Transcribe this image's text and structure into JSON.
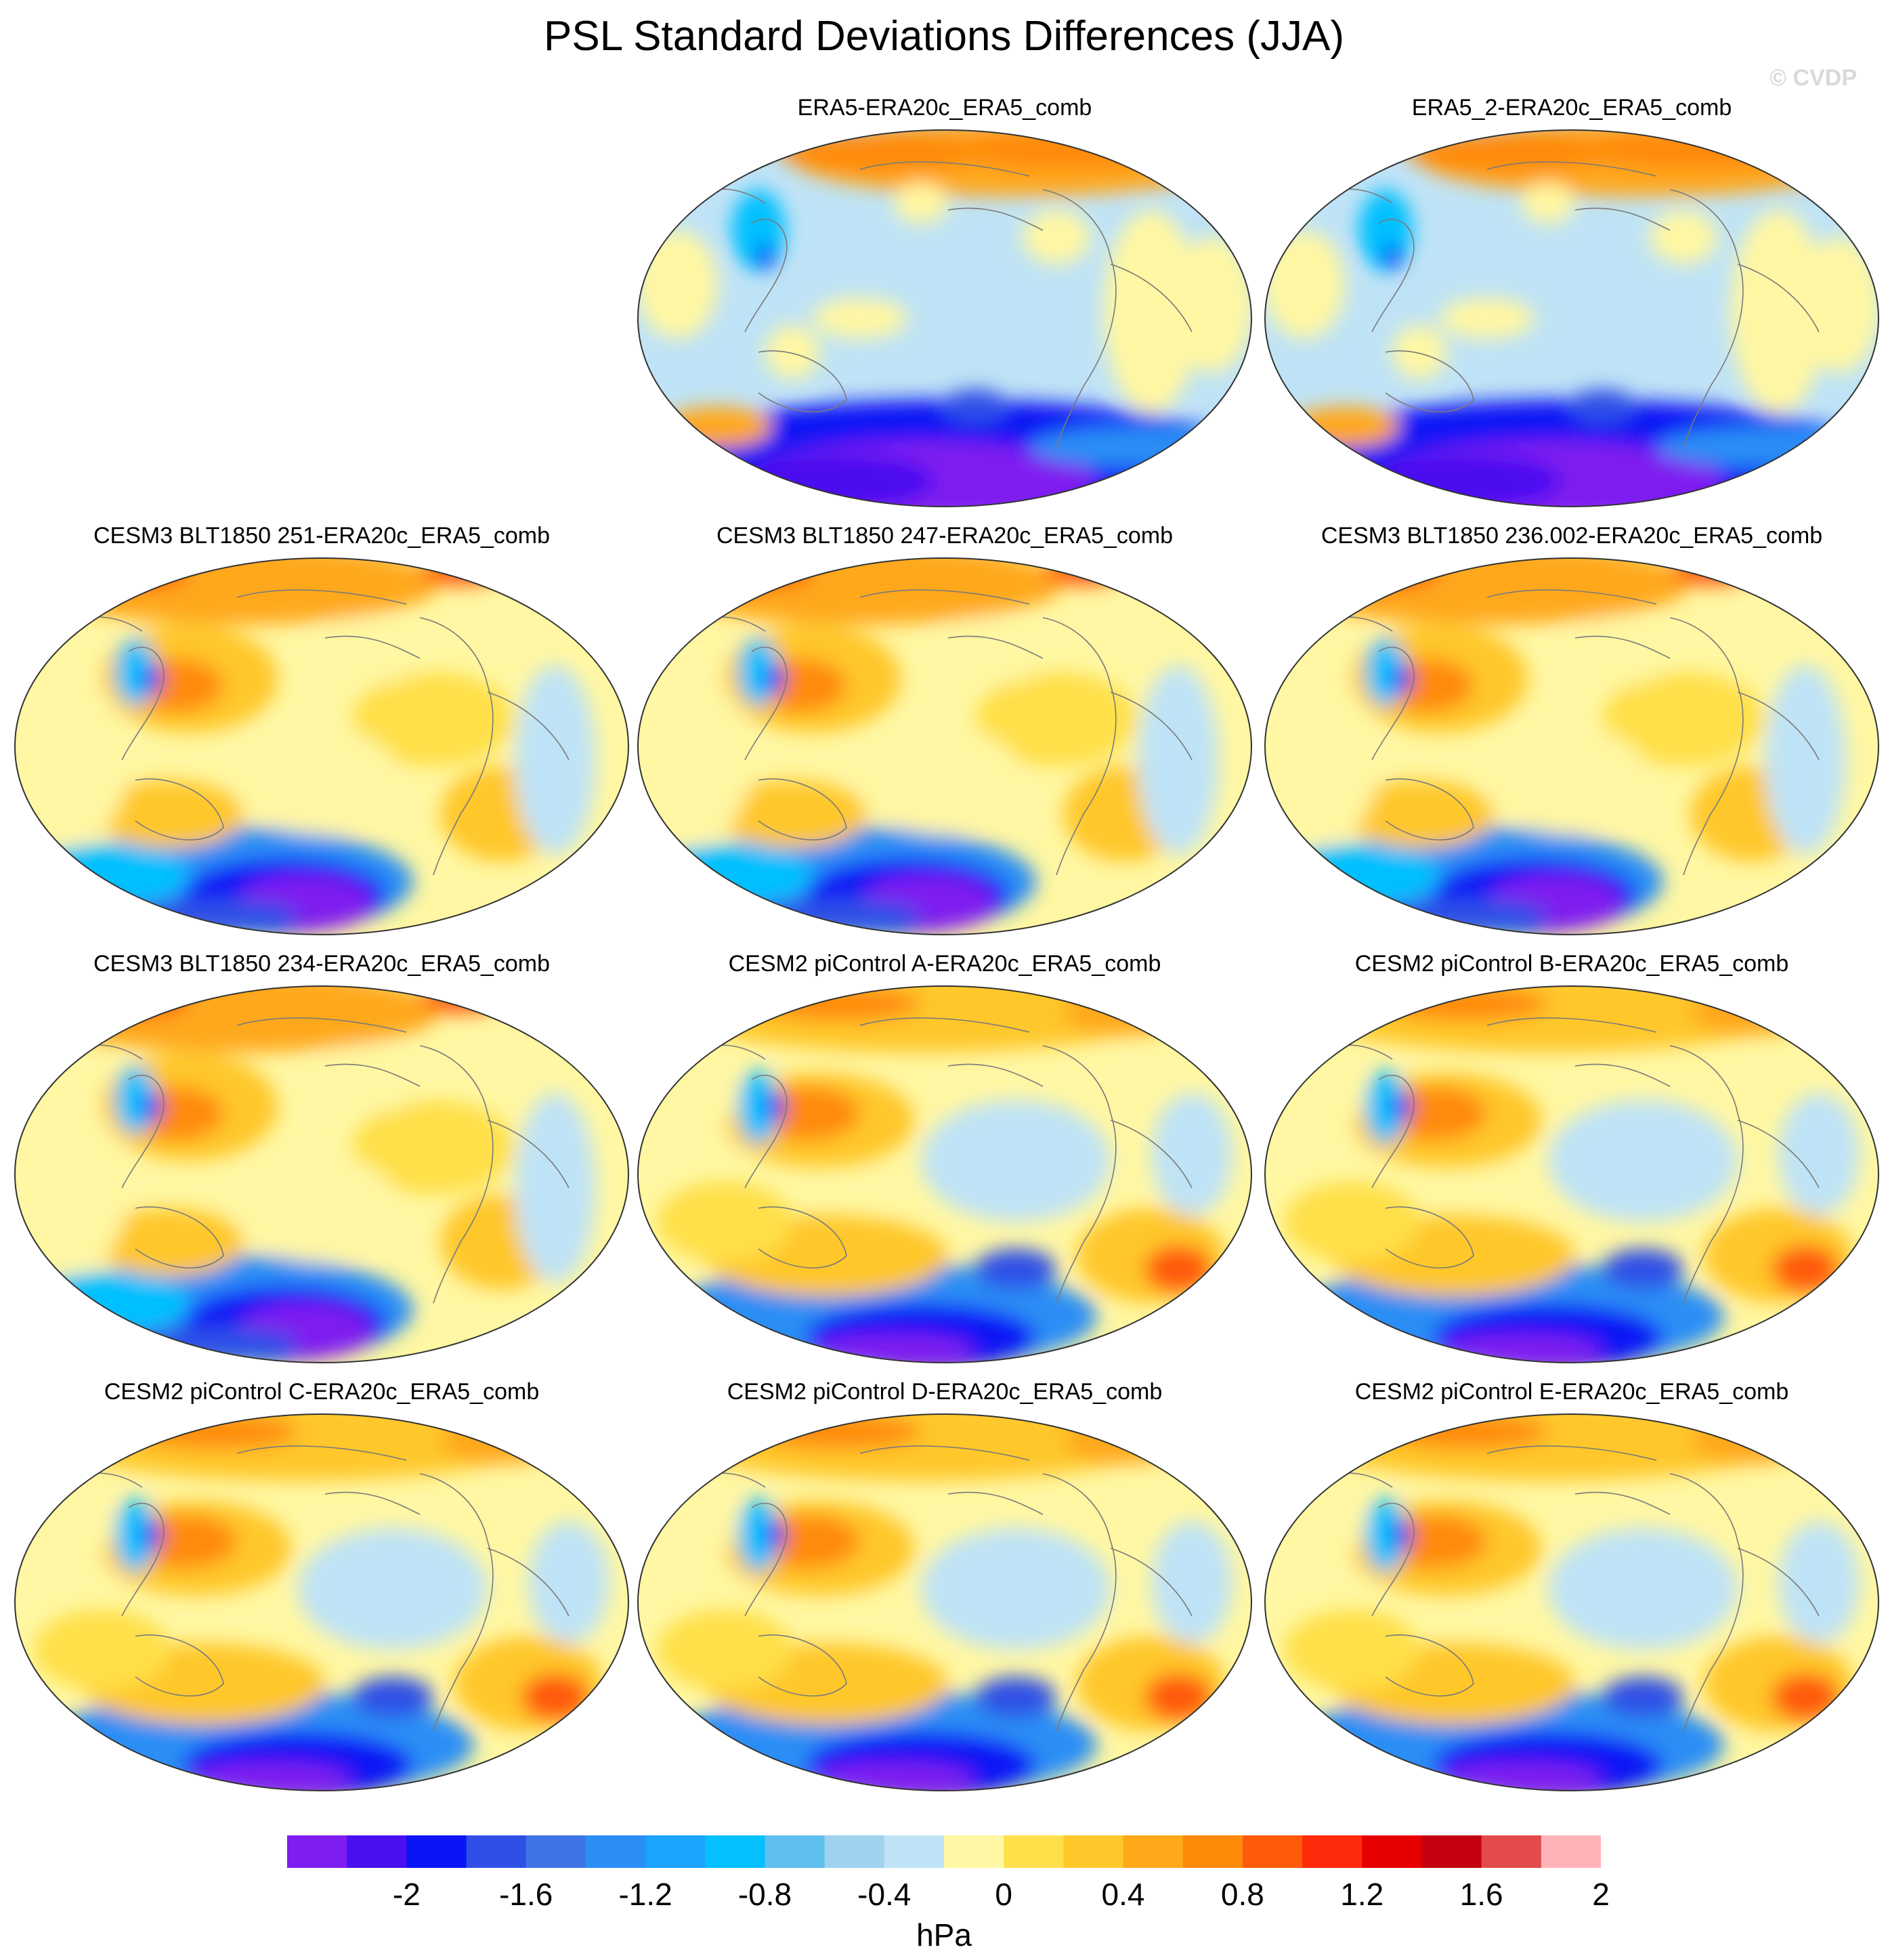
{
  "title": "PSL Standard Deviations Differences (JJA)",
  "watermark": "© CVDP",
  "panels": [
    {
      "label": "ERA5-ERA20c_ERA5_comb",
      "variant": 0
    },
    {
      "label": "ERA5_2-ERA20c_ERA5_comb",
      "variant": 0
    },
    {
      "label": "CESM3 BLT1850 251-ERA20c_ERA5_comb",
      "variant": 1
    },
    {
      "label": "CESM3 BLT1850 247-ERA20c_ERA5_comb",
      "variant": 1
    },
    {
      "label": "CESM3 BLT1850 236.002-ERA20c_ERA5_comb",
      "variant": 1
    },
    {
      "label": "CESM3 BLT1850 234-ERA20c_ERA5_comb",
      "variant": 1
    },
    {
      "label": "CESM2 piControl A-ERA20c_ERA5_comb",
      "variant": 2
    },
    {
      "label": "CESM2 piControl B-ERA20c_ERA5_comb",
      "variant": 2
    },
    {
      "label": "CESM2 piControl C-ERA20c_ERA5_comb",
      "variant": 2
    },
    {
      "label": "CESM2 piControl D-ERA20c_ERA5_comb",
      "variant": 2
    },
    {
      "label": "CESM2 piControl E-ERA20c_ERA5_comb",
      "variant": 2
    }
  ],
  "colorbar": {
    "colors": [
      "#7f1cf0",
      "#4a10f0",
      "#0a14f5",
      "#2f4fe6",
      "#3f74e6",
      "#2b8ef5",
      "#1aa3ff",
      "#05c0ff",
      "#5fbfef",
      "#9ed2ee",
      "#bfe3f6",
      "#fff7a3",
      "#ffe04a",
      "#ffc72a",
      "#ffa81a",
      "#ff8a0a",
      "#ff5a0a",
      "#ff2a0a",
      "#e60000",
      "#c40010",
      "#e34a4a",
      "#ffb3b8"
    ],
    "ticks": [
      "-2",
      "-1.6",
      "-1.2",
      "-0.8",
      "-0.4",
      "0",
      "0.4",
      "0.8",
      "1.2",
      "1.6",
      "2"
    ],
    "units": "hPa"
  }
}
